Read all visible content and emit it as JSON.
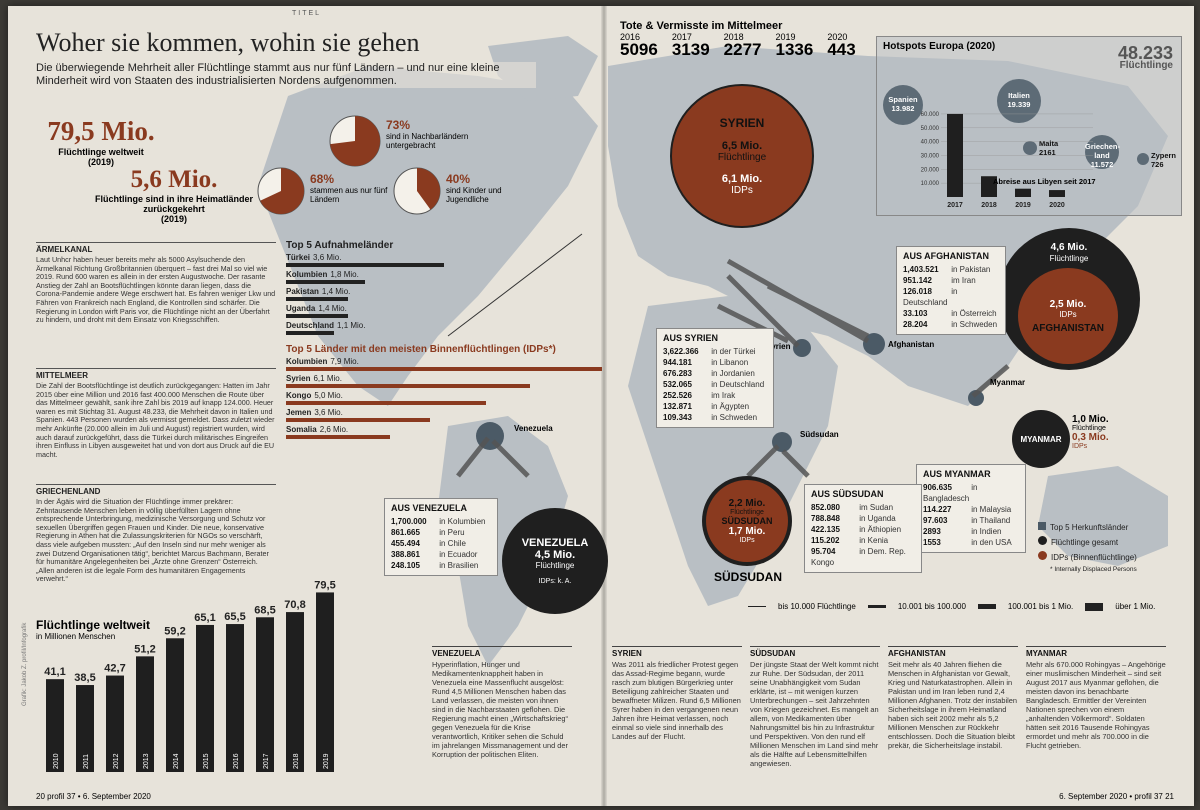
{
  "page": {
    "section": "TITEL",
    "footer_left": "20  profil 37 • 6. September 2020",
    "footer_right": "6. September 2020 • profil 37  21"
  },
  "headline": "Woher sie kommen, wohin sie gehen",
  "lead": "Die überwiegende Mehrheit aller Flüchtlinge stammt aus nur fünf Ländern – und nur eine kleine Minderheit wird von Staaten des industrialisierten Nordens aufgenommen.",
  "stats": {
    "total_value": "79,5 Mio.",
    "total_label": "Flüchtlinge weltweit",
    "total_year": "(2019)",
    "returned_value": "5,6 Mio.",
    "returned_label": "Flüchtlinge sind in ihre Heimatländer zurückgekehrt",
    "returned_year": "(2019)",
    "pies": [
      {
        "percent": 73,
        "label": "73%",
        "text": "sind in Nachbarländern untergebracht"
      },
      {
        "percent": 68,
        "label": "68%",
        "text": "stammen aus nur fünf Ländern"
      },
      {
        "percent": 40,
        "label": "40%",
        "text": "sind Kinder und Jugendliche"
      }
    ]
  },
  "articles": [
    {
      "title": "ÄRMELKANAL",
      "text": "Laut Unhcr haben heuer bereits mehr als 5000 Asylsuchende den Ärmelkanal Richtung Großbritannien überquert – fast drei Mal so viel wie 2019. Rund 600 waren es allein in der ersten Augustwoche. Der rasante Anstieg der Zahl an Bootsflüchtlingen könnte daran liegen, dass die Corona-Pandemie andere Wege erschwert hat. Es fahren weniger Lkw und Fähren von Frankreich nach England, die Kontrollen sind schärfer. Die Regierung in London wirft Paris vor, die Flüchtlinge nicht an der Überfahrt zu hindern, und droht mit dem Einsatz von Kriegsschiffen."
    },
    {
      "title": "MITTELMEER",
      "text": "Die Zahl der Bootsflüchtlinge ist deutlich zurückgegangen: Hatten im Jahr 2015 über eine Million und 2016 fast 400.000 Menschen die Route über das Mittelmeer gewählt, sank ihre Zahl bis 2019 auf knapp 124.000. Heuer waren es mit Stichtag 31. August 48.233, die Mehrheit davon in Italien und Spanien. 443 Personen wurden als vermisst gemeldet. Dass zuletzt wieder mehr Ankünfte (20.000 allein im Juli und August) registriert wurden, wird auch darauf zurückgeführt, dass die Türkei durch militärisches Eingreifen ihren Einfluss in Libyen ausgeweitet hat und von dort aus Druck auf die EU macht."
    },
    {
      "title": "GRIECHENLAND",
      "text": "In der Ägäis wird die Situation der Flüchtlinge immer prekärer: Zehntausende Menschen leben in völlig überfüllten Lagern ohne entsprechende Unterbringung, medizinische Versorgung und Schutz vor sexuellen Übergriffen gegen Frauen und Kinder. Die neue, konservative Regierung in Athen hat die Zulassungskriterien für NGOs so verschärft, dass viele aufgeben mussten: „Auf den Inseln sind nur mehr weniger als zwei Dutzend Organisationen tätig“, berichtet Marcus Bachmann, Berater für humanitäre Angelegenheiten bei „Ärzte ohne Grenzen“ Österreich. „Allen anderen ist die legale Form des humanitären Engagements verwehrt.“"
    }
  ],
  "top5_host": {
    "title": "Top 5 Aufnahmeländer",
    "items": [
      {
        "country": "Türkei",
        "value": "3,6 Mio.",
        "num": 3.6
      },
      {
        "country": "Kolumbien",
        "value": "1,8 Mio.",
        "num": 1.8
      },
      {
        "country": "Pakistan",
        "value": "1,4 Mio.",
        "num": 1.4
      },
      {
        "country": "Uganda",
        "value": "1,4 Mio.",
        "num": 1.4
      },
      {
        "country": "Deutschland",
        "value": "1,1 Mio.",
        "num": 1.1
      }
    ]
  },
  "top5_idp": {
    "title": "Top 5 Länder mit den meisten Binnenflüchtlingen (IDPs*)",
    "items": [
      {
        "country": "Kolumbien",
        "value": "7,9 Mio.",
        "num": 7.9
      },
      {
        "country": "Syrien",
        "value": "6,1 Mio.",
        "num": 6.1
      },
      {
        "country": "Kongo",
        "value": "5,0 Mio.",
        "num": 5.0
      },
      {
        "country": "Jemen",
        "value": "3,6 Mio.",
        "num": 3.6
      },
      {
        "country": "Somalia",
        "value": "2,6 Mio.",
        "num": 2.6
      }
    ]
  },
  "chart_data": {
    "type": "bar",
    "title": "Flüchtlinge weltweit",
    "ylabel": "in Millionen Menschen",
    "categories": [
      "2010",
      "2011",
      "2012",
      "2013",
      "2014",
      "2015",
      "2016",
      "2017",
      "2018",
      "2019"
    ],
    "values": [
      41.1,
      38.5,
      42.7,
      51.2,
      59.2,
      65.1,
      65.5,
      68.5,
      70.8,
      79.5
    ],
    "value_labels": [
      "41,1",
      "38,5",
      "42,7",
      "51,2",
      "59,2",
      "65,1",
      "65,5",
      "68,5",
      "70,8",
      "79,5"
    ],
    "ylim": [
      0,
      85
    ]
  },
  "mittelmeer": {
    "title": "Tote & Vermisste im Mittelmeer",
    "items": [
      {
        "year": "2016",
        "value": "5096"
      },
      {
        "year": "2017",
        "value": "3139"
      },
      {
        "year": "2018",
        "value": "2277"
      },
      {
        "year": "2019",
        "value": "1336"
      },
      {
        "year": "2020",
        "value": "443"
      }
    ]
  },
  "hotspots": {
    "title": "Hotspots Europa (2020)",
    "total": "48.233",
    "total_label": "Flüchtlinge",
    "countries": [
      {
        "name": "Spanien",
        "value": "13.982"
      },
      {
        "name": "Italien",
        "value": "19.339"
      },
      {
        "name": "Malta",
        "value": "2161"
      },
      {
        "name": "Griechen-land",
        "value": "11.572"
      },
      {
        "name": "Zypern",
        "value": "726"
      }
    ],
    "libya_label": "Abreise aus Libyen seit 2017",
    "libya_years": [
      "2017",
      "2018",
      "2019",
      "2020"
    ],
    "libya_values": [
      60000,
      15000,
      6000,
      5000
    ],
    "libya_ticks": [
      "60.000",
      "50.000",
      "40.000",
      "30.000",
      "20.000",
      "10.000"
    ]
  },
  "circles": {
    "syrien": {
      "name": "SYRIEN",
      "refugees": "6,5 Mio.",
      "refugees_label": "Flüchtlinge",
      "idps": "6,1 Mio.",
      "idps_label": "IDPs"
    },
    "afghanistan": {
      "name": "AFGHANISTAN",
      "refugees": "4,6 Mio.",
      "refugees_label": "Flüchtlinge",
      "idps": "2,5 Mio.",
      "idps_label": "IDPs"
    },
    "myanmar": {
      "name": "MYANMAR",
      "refugees": "1,0 Mio.",
      "refugees_label": "Flüchtlinge",
      "idps": "0,3 Mio.",
      "idps_label": "IDPs"
    },
    "suedsudan": {
      "name": "SÜDSUDAN",
      "refugees": "2,2 Mio.",
      "refugees_label": "Flüchtlinge",
      "idps": "1,7 Mio.",
      "idps_label": "IDPs"
    },
    "venezuela": {
      "name": "VENEZUELA",
      "refugees": "4,5 Mio.",
      "refugees_label": "Flüchtlinge",
      "idps": "IDPs: k. A."
    }
  },
  "map_labels": {
    "venezuela": "Venezuela",
    "syrien": "Syrien",
    "afghanistan": "Afghanistan",
    "myanmar": "Myanmar",
    "suedsudan": "Südsudan",
    "suedsudan_big": "SÜDSUDAN"
  },
  "boxes": {
    "syrien": {
      "title": "AUS SYRIEN",
      "rows": [
        {
          "v": "3,622.366",
          "p": "in der Türkei"
        },
        {
          "v": "944.181",
          "p": "in Libanon"
        },
        {
          "v": "676.283",
          "p": "in Jordanien"
        },
        {
          "v": "532.065",
          "p": "in Deutschland"
        },
        {
          "v": "252.526",
          "p": "im Irak"
        },
        {
          "v": "132.871",
          "p": "in Ägypten"
        },
        {
          "v": "109.343",
          "p": "in Schweden"
        }
      ]
    },
    "afghanistan": {
      "title": "AUS AFGHANISTAN",
      "rows": [
        {
          "v": "1,403.521",
          "p": "in Pakistan"
        },
        {
          "v": "951.142",
          "p": "im Iran"
        },
        {
          "v": "126.018",
          "p": "in Deutschland"
        },
        {
          "v": "33.103",
          "p": "in Österreich"
        },
        {
          "v": "28.204",
          "p": "in Schweden"
        }
      ]
    },
    "myanmar": {
      "title": "AUS MYANMAR",
      "rows": [
        {
          "v": "906.635",
          "p": "in Bangladesch"
        },
        {
          "v": "114.227",
          "p": "in Malaysia"
        },
        {
          "v": "97.603",
          "p": "in Thailand"
        },
        {
          "v": "2893",
          "p": "in Indien"
        },
        {
          "v": "1553",
          "p": "in den USA"
        }
      ]
    },
    "suedsudan": {
      "title": "AUS SÜDSUDAN",
      "rows": [
        {
          "v": "852.080",
          "p": "im Sudan"
        },
        {
          "v": "788.848",
          "p": "in Uganda"
        },
        {
          "v": "422.135",
          "p": "in Äthiopien"
        },
        {
          "v": "115.202",
          "p": "in Kenia"
        },
        {
          "v": "95.704",
          "p": "in Dem. Rep. Kongo"
        }
      ]
    },
    "venezuela": {
      "title": "AUS VENEZUELA",
      "rows": [
        {
          "v": "1,700.000",
          "p": "in Kolumbien"
        },
        {
          "v": "861.665",
          "p": "in Peru"
        },
        {
          "v": "455.494",
          "p": "in Chile"
        },
        {
          "v": "388.861",
          "p": "in Ecuador"
        },
        {
          "v": "248.105",
          "p": "in Brasilien"
        }
      ]
    }
  },
  "legend": {
    "top5": "Top 5 Herkunftsländer",
    "total": "Flüchtlinge gesamt",
    "idps": "IDPs (Binnenflüchtlinge)",
    "footnote": "* Internally Displaced Persons",
    "flow": [
      "bis 10.000 Flüchtlinge",
      "10.001 bis 100.000",
      "100.001 bis 1 Mio.",
      "über 1 Mio."
    ]
  },
  "bottom_articles": [
    {
      "title": "VENEZUELA",
      "text": "Hyperinflation, Hunger und Medikamentenknappheit haben in Venezuela eine Massenflucht ausgelöst: Rund 4,5 Millionen Menschen haben das Land verlassen, die meisten von ihnen sind in die Nachbarstaaten geflohen. Die Regierung macht einen „Wirtschaftskrieg“ gegen Venezuela für die Krise verantwortlich, Kritiker sehen die Schuld im jahrelangen Missmanagement und der Korruption der politischen Eliten."
    },
    {
      "title": "SYRIEN",
      "text": "Was 2011 als friedlicher Protest gegen das Assad-Regime begann, wurde rasch zum blutigen Bürgerkrieg unter Beteiligung zahlreicher Staaten und bewaffneter Milizen. Rund 6,5 Millionen Syrer haben in den vergangenen neun Jahren ihre Heimat verlassen, noch einmal so viele sind innerhalb des Landes auf der Flucht."
    },
    {
      "title": "SÜDSUDAN",
      "text": "Der jüngste Staat der Welt kommt nicht zur Ruhe. Der Südsudan, der 2011 seine Unabhängigkeit vom Sudan erklärte, ist – mit wenigen kurzen Unterbrechungen – seit Jahrzehnten von Kriegen gezeichnet. Es mangelt an allem, von Medikamenten über Nahrungsmittel bis hin zu Infrastruktur und Perspektiven. Von den rund elf Millionen Menschen im Land sind mehr als die Hälfte auf Lebensmittelhilfen angewiesen."
    },
    {
      "title": "AFGHANISTAN",
      "text": "Seit mehr als 40 Jahren fliehen die Menschen in Afghanistan vor Gewalt, Krieg und Naturkatastrophen. Allein in Pakistan und im Iran leben rund 2,4 Millionen Afghanen. Trotz der instabilen Sicherheitslage in ihrem Heimatland haben sich seit 2002 mehr als 5,2 Millionen Menschen zur Rückkehr entschlossen. Doch die Situation bleibt prekär, die Sicherheitslage instabil."
    },
    {
      "title": "MYANMAR",
      "text": "Mehr als 670.000 Rohingyas – Angehörige einer muslimischen Minderheit – sind seit August 2017 aus Myanmar geflohen, die meisten davon ins benachbarte Bangladesch. Ermittler der Vereinten Nationen sprechen von einem „anhaltenden Völkermord“. Soldaten hätten seit 2016 Tausende Rohingyas ermordet und mehr als 700.000 in die Flucht getrieben."
    }
  ],
  "credit": "Grafik: Jakob Z. profil/Infografik",
  "colors": {
    "rust": "#8a3a1f",
    "dark": "#1f1f1f",
    "grey": "#7f8a92",
    "paper": "#e7e3da"
  }
}
